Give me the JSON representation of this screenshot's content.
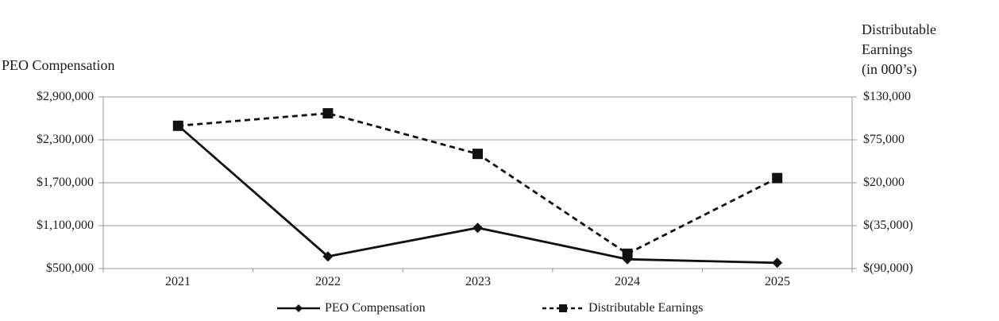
{
  "chart_data": {
    "type": "line",
    "title": "",
    "categories": [
      "2021",
      "2022",
      "2023",
      "2024",
      "2025"
    ],
    "left_axis": {
      "title": "PEO Compensation",
      "ticks": [
        "$2,900,000",
        "$2,300,000",
        "$1,700,000",
        "$1,100,000",
        "$500,000"
      ],
      "min": 500000,
      "max": 2900000
    },
    "right_axis": {
      "title": "Distributable Earnings (in 000’s)",
      "title_lines": [
        "Distributable",
        "Earnings",
        "(in 000’s)"
      ],
      "ticks": [
        "$130,000",
        "$75,000",
        "$20,000",
        "$(35,000)",
        "$(90,000)"
      ],
      "min": -90000,
      "max": 130000
    },
    "series": [
      {
        "name": "PEO Compensation",
        "axis": "left",
        "line": "solid",
        "marker": "diamond",
        "values": [
          2500000,
          670000,
          1070000,
          630000,
          580000
        ]
      },
      {
        "name": "Distributable Earnings",
        "axis": "right",
        "line": "dashed",
        "marker": "square",
        "values": [
          93000,
          109000,
          57000,
          -71000,
          26000
        ]
      }
    ],
    "legend": {
      "position": "bottom",
      "items": [
        "PEO Compensation",
        "Distributable Earnings"
      ]
    },
    "grid": true,
    "colors": {
      "series": "#111111",
      "grid": "#999999",
      "text": "#1a1a1a"
    }
  }
}
